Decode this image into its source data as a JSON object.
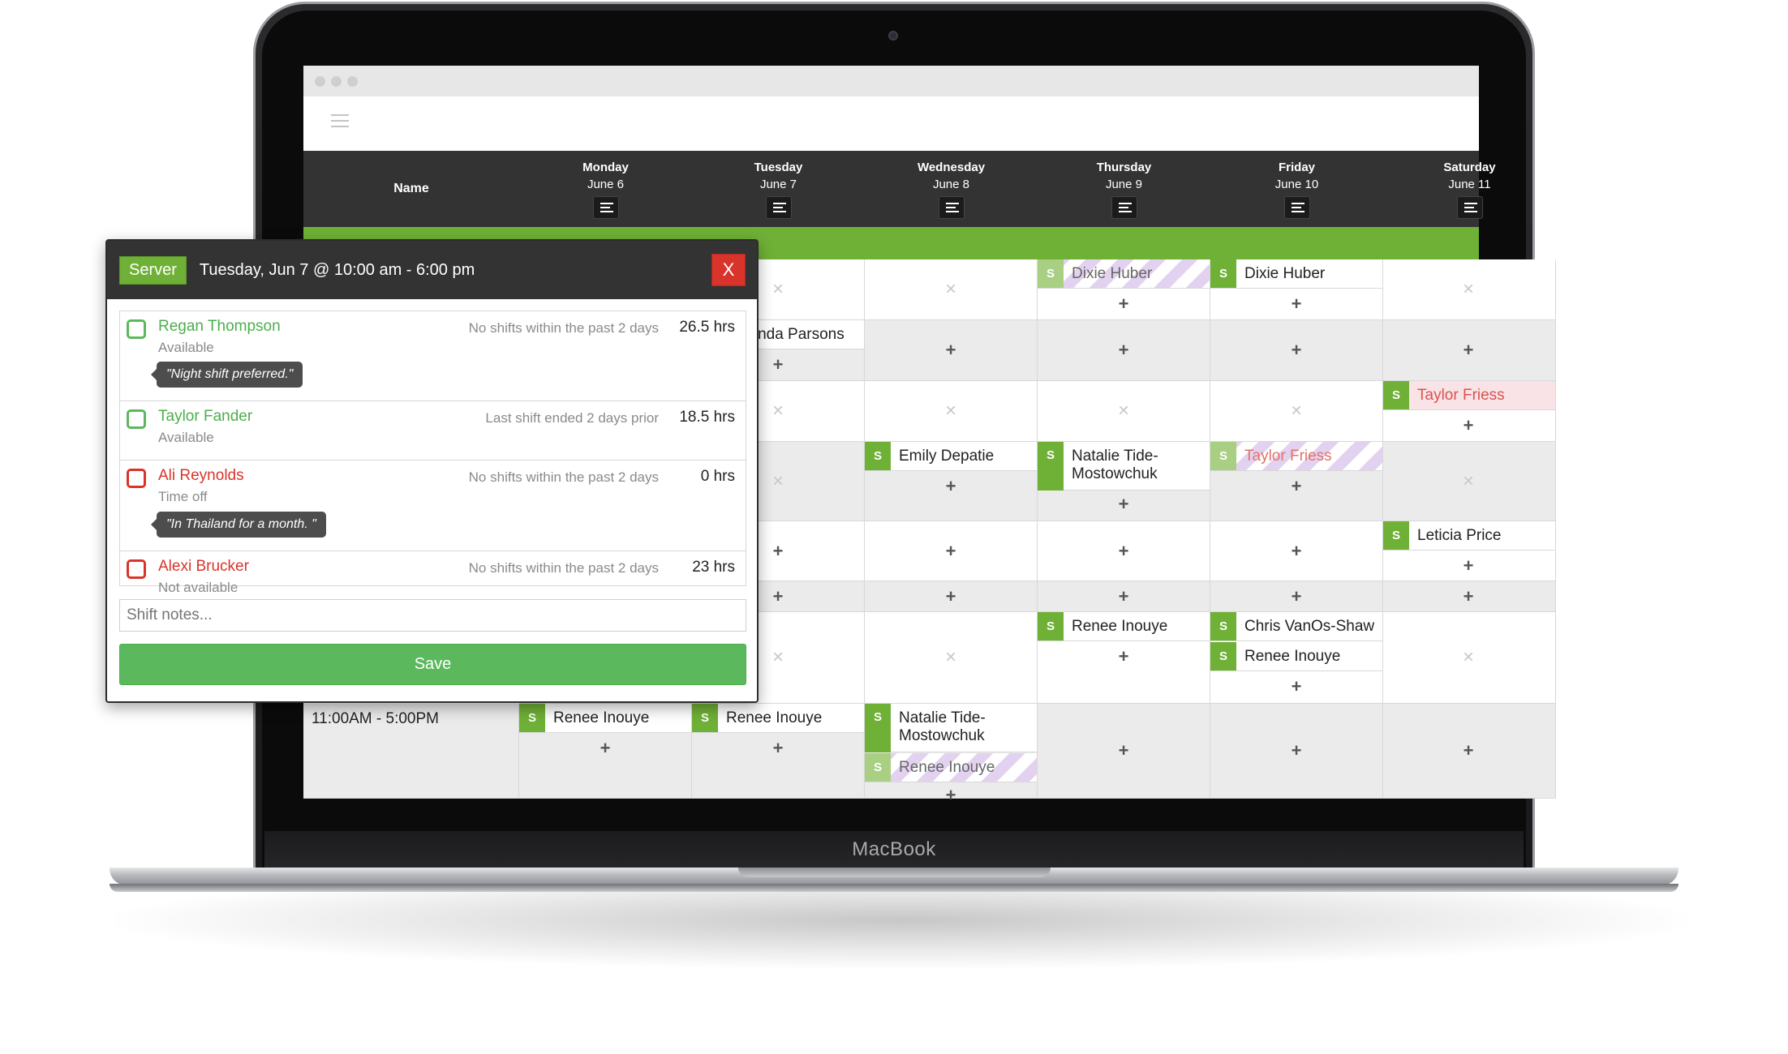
{
  "device": {
    "brand": "MacBook"
  },
  "schedule": {
    "name_header": "Name",
    "days": [
      {
        "name": "Monday",
        "date": "June 6"
      },
      {
        "name": "Tuesday",
        "date": "June 7"
      },
      {
        "name": "Wednesday",
        "date": "June 8"
      },
      {
        "name": "Thursday",
        "date": "June 9"
      },
      {
        "name": "Friday",
        "date": "June 10"
      },
      {
        "name": "Saturday",
        "date": "June 11"
      }
    ],
    "shifts": {
      "thu_r1": "Dixie Huber",
      "fri_r1": "Dixie Huber",
      "tue_r2": "Amanda Parsons",
      "sat_r3": "Taylor Friess",
      "wed_r4": "Emily Depatie",
      "thu_r4": "Natalie Tide-Mostowchuk",
      "fri_r4": "Taylor Friess",
      "sat_r5": "Leticia Price",
      "thu_r7": "Renee Inouye",
      "fri_r7a": "Chris VanOs-Shaw",
      "fri_r7b": "Renee Inouye",
      "mon_r8": "Renee Inouye",
      "tue_r8": "Renee Inouye",
      "wed_r8a": "Natalie Tide-Mostowchuk",
      "wed_r8b": "Renee Inouye"
    },
    "badge": "S",
    "row8_time": "11:00AM - 5:00PM"
  },
  "popup": {
    "role": "Server",
    "title": "Tuesday, Jun 7 @ 10:00 am - 6:00 pm",
    "close_label": "X",
    "candidates": [
      {
        "name": "Regan Thompson",
        "status": "Available",
        "note": "No shifts within the past 2 days",
        "hours": "26.5 hrs",
        "comment": "\"Night shift preferred.\""
      },
      {
        "name": "Taylor Fander",
        "status": "Available",
        "note": "Last shift ended 2 days prior",
        "hours": "18.5 hrs"
      },
      {
        "name": "Ali Reynolds",
        "status": "Time off",
        "note": "No shifts within the past 2 days",
        "hours": "0 hrs",
        "comment": "\"In Thailand for a month. \""
      },
      {
        "name": "Alexi Brucker",
        "status": "Not available",
        "note": "No shifts within the past 2 days",
        "hours": "23 hrs"
      }
    ],
    "notes_placeholder": "Shift notes...",
    "save_label": "Save"
  },
  "colors": {
    "accent_green": "#6fb036",
    "danger_red": "#d9342b",
    "header_dark": "#333333"
  }
}
